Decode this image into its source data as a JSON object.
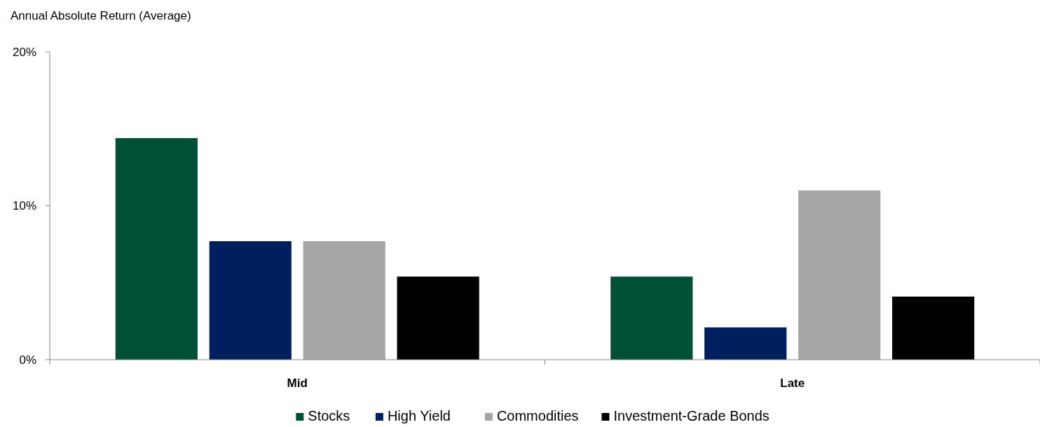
{
  "chart_data": {
    "type": "bar",
    "ylabel": "Annual Absolute Return (Average)",
    "categories": [
      "Mid",
      "Late"
    ],
    "series": [
      {
        "name": "Stocks",
        "color": "#005038",
        "values": [
          14.4,
          5.4
        ]
      },
      {
        "name": "High Yield",
        "color": "#001f5f",
        "values": [
          7.7,
          2.1
        ]
      },
      {
        "name": "Commodities",
        "color": "#a6a6a6",
        "values": [
          7.7,
          11.0
        ]
      },
      {
        "name": "Investment-Grade Bonds",
        "color": "#000000",
        "values": [
          5.4,
          4.1
        ]
      }
    ],
    "ylim": [
      0,
      20
    ],
    "yticks": [
      {
        "value": 0,
        "label": "0%"
      },
      {
        "value": 10,
        "label": "10%"
      },
      {
        "value": 20,
        "label": "20%"
      }
    ],
    "grid": false,
    "legend": "bottom"
  }
}
